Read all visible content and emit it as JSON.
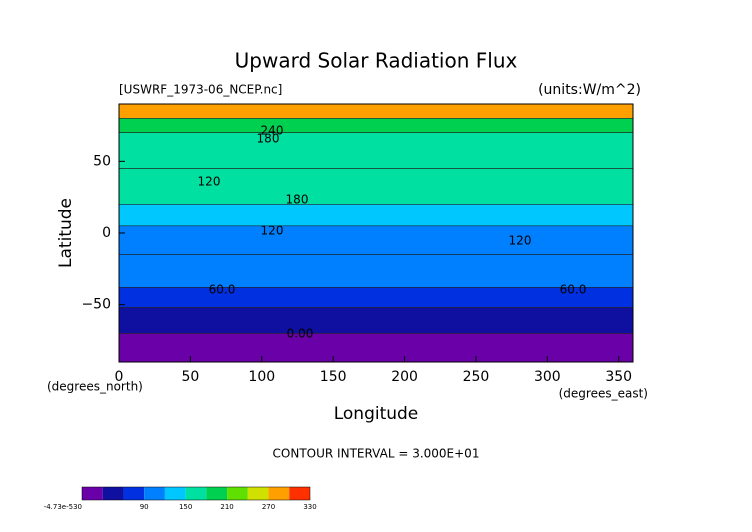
{
  "chart_data": {
    "type": "contour",
    "title": "Upward Solar Radiation Flux",
    "subtitle": "[USWRF_1973-06_NCEP.nc]",
    "units": "(units:W/m^2)",
    "x_label": "Longitude",
    "y_label": "Latitude",
    "x_unit": "(degrees_east)",
    "y_unit": "(degrees_north)",
    "footer": "CONTOUR INTERVAL = 3.000E+01",
    "xlim": [
      0,
      360
    ],
    "xticks": [
      0,
      50,
      100,
      150,
      200,
      250,
      300,
      350
    ],
    "ylim": [
      -90,
      90
    ],
    "yticks": [
      {
        "value": -50,
        "label": "−50"
      },
      0,
      50
    ],
    "field": {
      "lat_edges": [
        90,
        80,
        70,
        45,
        20,
        5,
        -15,
        -38,
        -52,
        -70,
        -90
      ],
      "values": [
        270,
        200,
        165,
        150,
        130,
        110,
        95,
        70,
        45,
        15
      ]
    },
    "contour_labels": [
      "240",
      "180",
      "120",
      "180",
      "120",
      "120",
      "60.0",
      "60.0",
      "0.00"
    ],
    "colorbar": {
      "levels": [
        0,
        30,
        60,
        90,
        120,
        150,
        180,
        210,
        240,
        270,
        300,
        330
      ],
      "colors": [
        "#6a00a8",
        "#1010a0",
        "#0030e0",
        "#0080ff",
        "#00c8ff",
        "#00e0a0",
        "#00d050",
        "#60e000",
        "#d0e000",
        "#ffa000",
        "#ff3000"
      ],
      "ticks": [
        {
          "value": 0,
          "label": "-4.73e-530"
        },
        90,
        150,
        210,
        270,
        330
      ]
    }
  }
}
